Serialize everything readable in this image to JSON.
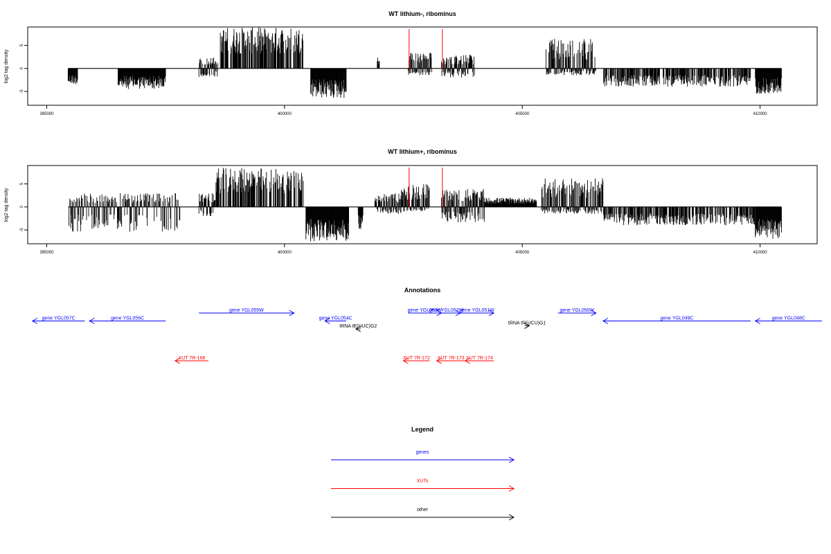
{
  "chart_data": [
    {
      "type": "bar",
      "title": "WT lithium-, ribominus",
      "ylabel": "log2 tag density",
      "xlim": [
        394600,
        411200
      ],
      "ylim": [
        -8,
        9
      ],
      "x_ticks": [
        395000,
        400000,
        405000,
        410000
      ],
      "y_ticks": [
        -5,
        0,
        5
      ],
      "grid": false,
      "baseline": [
        395450,
        410450
      ],
      "markers": [
        402620,
        403320
      ],
      "clusters": [
        {
          "from": 395450,
          "to": 395650,
          "ymin": -3.5,
          "ymax": 0
        },
        {
          "from": 396500,
          "to": 397500,
          "ymin": -4.5,
          "ymax": 0
        },
        {
          "from": 398200,
          "to": 398600,
          "ymin": -2,
          "ymax": 2.5
        },
        {
          "from": 398650,
          "to": 400400,
          "ymin": 0,
          "ymax": 9
        },
        {
          "from": 400550,
          "to": 401300,
          "ymin": -6.5,
          "ymax": 0
        },
        {
          "from": 401950,
          "to": 402000,
          "ymin": 0,
          "ymax": 2.5
        },
        {
          "from": 402600,
          "to": 403100,
          "ymin": -1.5,
          "ymax": 3.5
        },
        {
          "from": 403300,
          "to": 404000,
          "ymin": -2,
          "ymax": 3
        },
        {
          "from": 405500,
          "to": 406550,
          "ymin": -1.5,
          "ymax": 6.5
        },
        {
          "from": 406700,
          "to": 409800,
          "ymin": -4,
          "ymax": 0
        },
        {
          "from": 409900,
          "to": 410450,
          "ymin": -5.5,
          "ymax": 0
        }
      ]
    },
    {
      "type": "bar",
      "title": "WT lithium+, ribominus",
      "ylabel": "log2 tag density",
      "xlim": [
        394600,
        411200
      ],
      "ylim": [
        -8,
        9
      ],
      "x_ticks": [
        395000,
        400000,
        405000,
        410000
      ],
      "y_ticks": [
        -5,
        0,
        5
      ],
      "grid": false,
      "baseline": [
        395450,
        410450
      ],
      "markers": [
        402620,
        403320
      ],
      "clusters": [
        {
          "from": 395450,
          "to": 397800,
          "ymin": -5.5,
          "ymax": 3
        },
        {
          "from": 398200,
          "to": 398550,
          "ymin": -2,
          "ymax": 3
        },
        {
          "from": 398550,
          "to": 400400,
          "ymin": 0,
          "ymax": 8.5
        },
        {
          "from": 400450,
          "to": 401350,
          "ymin": -7.5,
          "ymax": 0
        },
        {
          "from": 401550,
          "to": 401650,
          "ymin": -5,
          "ymax": 0
        },
        {
          "from": 401900,
          "to": 402450,
          "ymin": -1.5,
          "ymax": 3
        },
        {
          "from": 402450,
          "to": 403050,
          "ymin": -1,
          "ymax": 5
        },
        {
          "from": 403300,
          "to": 404200,
          "ymin": -3.5,
          "ymax": 4
        },
        {
          "from": 404200,
          "to": 405300,
          "ymin": 0,
          "ymax": 2
        },
        {
          "from": 405400,
          "to": 406700,
          "ymin": -1.5,
          "ymax": 6.5
        },
        {
          "from": 406700,
          "to": 409900,
          "ymin": -4,
          "ymax": 0
        },
        {
          "from": 409900,
          "to": 410450,
          "ymin": -7,
          "ymax": 0
        }
      ]
    }
  ],
  "annotations": {
    "title": "Annotations",
    "items": [
      {
        "label": "gene YGL057C",
        "start": 394700,
        "end": 395800,
        "dir": "left",
        "color": "#0000ff",
        "row": 1
      },
      {
        "label": "gene YGL056C",
        "start": 395900,
        "end": 397500,
        "dir": "left",
        "color": "#0000ff",
        "row": 1
      },
      {
        "label": "gene YGL055W",
        "start": 398200,
        "end": 400200,
        "dir": "right",
        "color": "#0000ff",
        "row": 0
      },
      {
        "label": "gene YGL054C",
        "start": 400850,
        "end": 401300,
        "dir": "left",
        "color": "#0000ff",
        "row": 1
      },
      {
        "label": "tRNA tE(UUC)G2",
        "start": 401500,
        "end": 401600,
        "dir": "left",
        "color": "#000000",
        "row": 2
      },
      {
        "label": "gene YGL053W",
        "start": 402600,
        "end": 403300,
        "dir": "right",
        "color": "#0000ff",
        "row": 0
      },
      {
        "label": "gene YGL052W",
        "start": 403100,
        "end": 403700,
        "dir": "right",
        "color": "#0000ff",
        "row": 0
      },
      {
        "label": "gene YGL051W",
        "start": 403700,
        "end": 404400,
        "dir": "right",
        "color": "#0000ff",
        "row": 0
      },
      {
        "label": "tRNA tR(UCU)G1",
        "start": 405050,
        "end": 405150,
        "dir": "right",
        "color": "#000000",
        "row": 1.6
      },
      {
        "label": "gene YGL050W",
        "start": 405750,
        "end": 406550,
        "dir": "right",
        "color": "#0000ff",
        "row": 0
      },
      {
        "label": "gene YGL049C",
        "start": 406700,
        "end": 409800,
        "dir": "left",
        "color": "#0000ff",
        "row": 1
      },
      {
        "label": "gene YGL048C",
        "start": 409900,
        "end": 411300,
        "dir": "left",
        "color": "#0000ff",
        "row": 1
      },
      {
        "label": "XUT 7R-168",
        "start": 397700,
        "end": 398400,
        "dir": "left",
        "color": "#ff0000",
        "row": 6
      },
      {
        "label": "XUT 7R-172",
        "start": 402500,
        "end": 403050,
        "dir": "left",
        "color": "#ff0000",
        "row": 6
      },
      {
        "label": "XUT 7R-173",
        "start": 403200,
        "end": 403800,
        "dir": "left",
        "color": "#ff0000",
        "row": 6
      },
      {
        "label": "XUT 7R-174",
        "start": 403800,
        "end": 404400,
        "dir": "left",
        "color": "#ff0000",
        "row": 6
      }
    ]
  },
  "legend": {
    "title": "Legend",
    "items": [
      {
        "label": "genes",
        "color": "#0000ff"
      },
      {
        "label": "XUTs",
        "color": "#ff0000"
      },
      {
        "label": "other",
        "color": "#000000"
      }
    ]
  }
}
